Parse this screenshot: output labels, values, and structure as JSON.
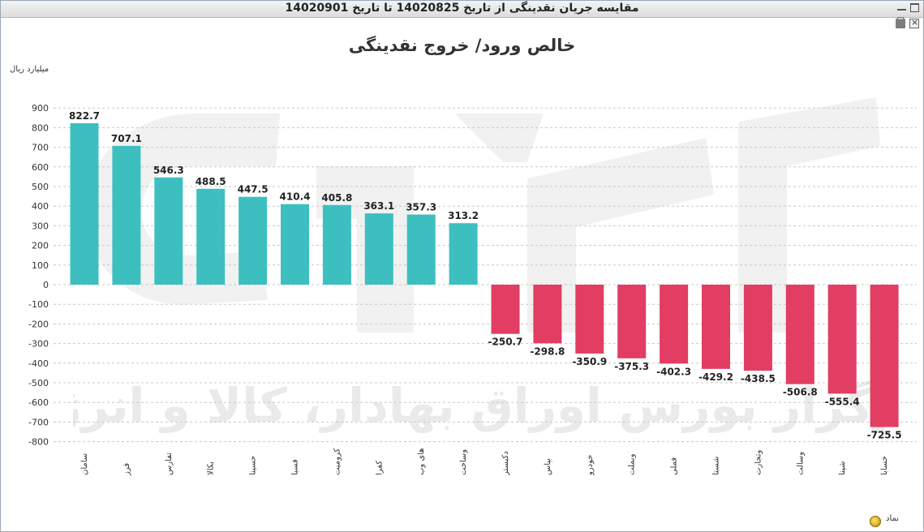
{
  "window": {
    "title": "مقایسه جریان نقدینگی از تاریخ 14020825 تا تاریخ 14020901"
  },
  "toolbar": {
    "icons": [
      "print-icon",
      "excel-export-icon"
    ]
  },
  "watermark": {
    "text": "کارگزار بورس اوراق بهادار، کالا و انرژی"
  },
  "chart_data": {
    "type": "bar",
    "title": "خالص ورود/ خروج نقدینگی",
    "ylabel": "میلیارد ریال",
    "xlabel": "",
    "ylim": [
      -800,
      900
    ],
    "yticks": [
      900,
      800,
      700,
      600,
      500,
      400,
      300,
      200,
      100,
      0,
      -100,
      -200,
      -300,
      -400,
      -500,
      -600,
      -700,
      -800
    ],
    "grid": true,
    "legend": {
      "label": "نماد",
      "placement": "bottom-right"
    },
    "categories": [
      "سامان",
      "فرز",
      "تفارس",
      "بکالا",
      "حسینا",
      "فسبا",
      "کرومیت",
      "کفرا",
      "های وب",
      "وساخت",
      "دکبستر",
      "بپاس",
      "خودرو",
      "وبملت",
      "فملی",
      "شستا",
      "وتجارت",
      "وسالت",
      "شپنا",
      "خسابا"
    ],
    "values": [
      822.7,
      707.1,
      546.3,
      488.5,
      447.5,
      410.4,
      405.8,
      363.1,
      357.3,
      313.2,
      -250.7,
      -298.8,
      -350.9,
      -375.3,
      -402.3,
      -429.2,
      -438.5,
      -506.8,
      -555.4,
      -725.5
    ],
    "colors": {
      "positive": "#3dbfc0",
      "negative": "#e23d63"
    }
  }
}
